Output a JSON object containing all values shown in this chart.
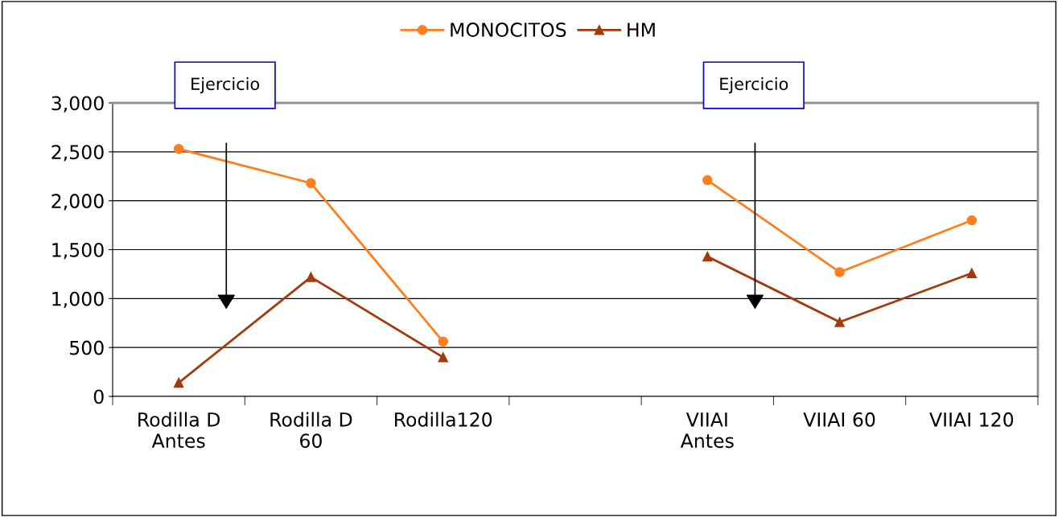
{
  "chart_data": {
    "type": "line",
    "categories": [
      "Rodilla D\nAntes",
      "Rodilla D\n60",
      "Rodilla120",
      null,
      "VIIAI\nAntes",
      "VIIAI 60",
      "VIIAI 120"
    ],
    "series": [
      {
        "name": "MONOCITOS",
        "color": "#ff7f1e",
        "marker": "circle",
        "values": [
          2530,
          2180,
          560,
          null,
          2210,
          1270,
          1800
        ]
      },
      {
        "name": "HM",
        "color": "#a33a0c",
        "marker": "triangle",
        "values": [
          140,
          1220,
          400,
          null,
          1430,
          760,
          1260
        ]
      }
    ],
    "ylim": [
      0,
      3000
    ],
    "yticks": [
      {
        "value": 0,
        "label": "0"
      },
      {
        "value": 500,
        "label": "500"
      },
      {
        "value": 1000,
        "label": "1,000"
      },
      {
        "value": 1500,
        "label": "1,500"
      },
      {
        "value": 2000,
        "label": "2,000"
      },
      {
        "value": 2500,
        "label": "2,500"
      },
      {
        "value": 3000,
        "label": "3,000"
      }
    ],
    "grid": "y",
    "legend": "top",
    "line_style": "solid",
    "annotations": [
      "Ejercicio",
      "Ejercicio"
    ]
  }
}
